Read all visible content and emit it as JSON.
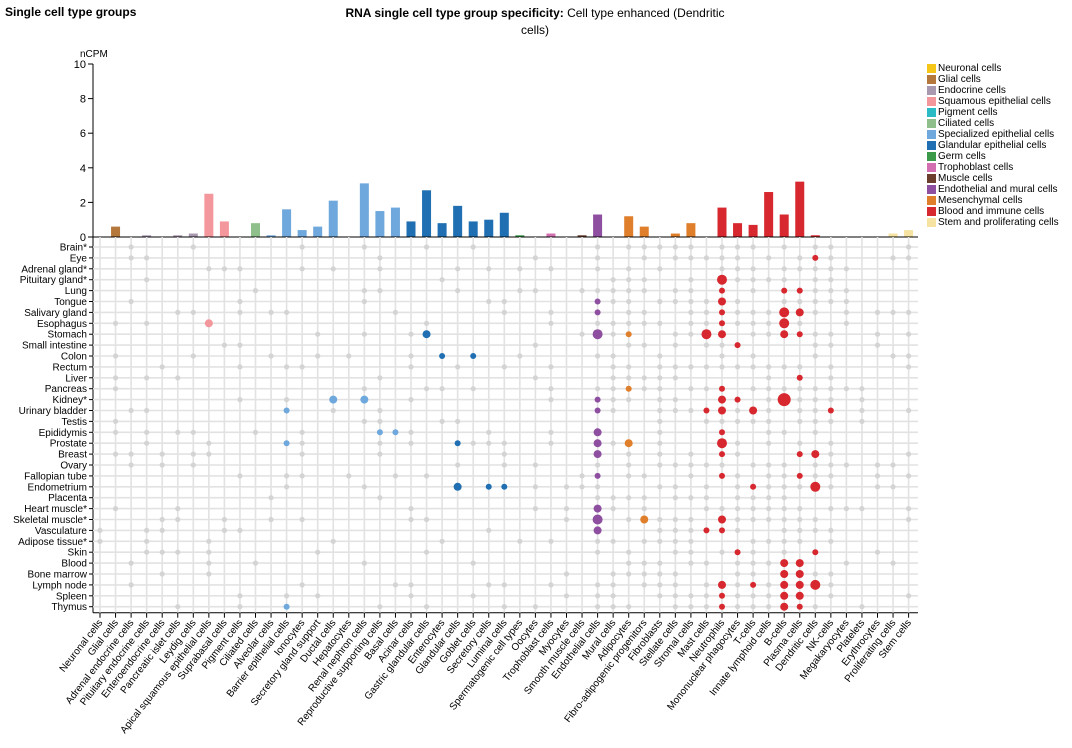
{
  "page": {
    "heading": "Single cell type groups",
    "title_bold": "RNA single cell type group specificity:",
    "title_rest": "Cell type enhanced (Dendritic cells)"
  },
  "legend": [
    {
      "label": "Neuronal cells",
      "color": "#f5c518"
    },
    {
      "label": "Glial cells",
      "color": "#b5783c"
    },
    {
      "label": "Endocrine cells",
      "color": "#a999b0"
    },
    {
      "label": "Squamous epithelial cells",
      "color": "#f4979c"
    },
    {
      "label": "Pigment cells",
      "color": "#2bbbc4"
    },
    {
      "label": "Ciliated cells",
      "color": "#8fbf8a"
    },
    {
      "label": "Specialized epithelial cells",
      "color": "#6fa8dc"
    },
    {
      "label": "Glandular epithelial cells",
      "color": "#1f6fb2"
    },
    {
      "label": "Germ cells",
      "color": "#3a9a4a"
    },
    {
      "label": "Trophoblast cells",
      "color": "#d36fb0"
    },
    {
      "label": "Muscle cells",
      "color": "#6b3e2e"
    },
    {
      "label": "Endothelial and mural cells",
      "color": "#8e4fa0"
    },
    {
      "label": "Mesenchymal cells",
      "color": "#e07f2b"
    },
    {
      "label": "Blood and immune cells",
      "color": "#d7282f"
    },
    {
      "label": "Stem and proliferating cells",
      "color": "#f6e3a1"
    }
  ],
  "chart_data": {
    "type": "bar",
    "ylabel": "nCPM",
    "ylim": [
      0,
      10
    ],
    "yticks": [
      0,
      2,
      4,
      6,
      8,
      10
    ],
    "grid": true,
    "categories": [
      "Neuronal cells",
      "Glial cells",
      "Adrenal endocrine cells",
      "Pituitary endocrine cells",
      "Enteroendocrine cells",
      "Pancreatic islet cells",
      "Leydig cells",
      "Apical squamous epithelial cells",
      "Suprabasal cells",
      "Pigment cells",
      "Ciliated cells",
      "Alveolar cells",
      "Barrier epithelial cells",
      "Ionocytes",
      "Secretory gland support",
      "Ductal cells",
      "Hepatocytes",
      "Renal nephron cells",
      "Reproductive supporting cells",
      "Basal cells",
      "Acinar cells",
      "Gastric glandular cells",
      "Enterocytes",
      "Glandular cells",
      "Goblet cells",
      "Secretory cells",
      "Luminal cells",
      "Spermatogenic cell types",
      "Oocytes",
      "Trophoblast cells",
      "Myocytes",
      "Smooth muscle cells",
      "Endothelial cells",
      "Mural cells",
      "Adipocytes",
      "Fibro-adipogenic progenitors",
      "Fibroblasts",
      "Stellate cells",
      "Stromal cells",
      "Mast cells",
      "Neutrophils",
      "Mononuclear phagocytes",
      "T-cells",
      "Innate lymphoid cells",
      "B-cells",
      "Plasma cells",
      "Dendritic cells",
      "NK-cells",
      "Megakaryocytes",
      "Platelets",
      "Erythrocytes",
      "Proliferating cells",
      "Stem cells"
    ],
    "groups": [
      0,
      1,
      2,
      2,
      2,
      2,
      2,
      3,
      3,
      4,
      5,
      6,
      6,
      6,
      6,
      6,
      6,
      6,
      6,
      6,
      7,
      7,
      7,
      7,
      7,
      7,
      7,
      8,
      8,
      9,
      10,
      10,
      11,
      11,
      12,
      12,
      12,
      12,
      12,
      13,
      13,
      13,
      13,
      13,
      13,
      13,
      13,
      13,
      13,
      13,
      13,
      14,
      14
    ],
    "values": [
      0.02,
      0.6,
      0.02,
      0.1,
      0.02,
      0.1,
      0.2,
      2.5,
      0.9,
      0.02,
      0.8,
      0.1,
      1.6,
      0.4,
      0.6,
      2.1,
      0.02,
      3.1,
      1.5,
      1.7,
      0.9,
      2.7,
      0.8,
      1.8,
      0.9,
      1.0,
      1.4,
      0.1,
      0.02,
      0.2,
      0.02,
      0.1,
      1.3,
      0.02,
      1.2,
      0.6,
      0.02,
      0.2,
      0.8,
      0.02,
      1.7,
      0.8,
      0.7,
      2.6,
      1.3,
      3.2,
      0.1,
      0.02,
      0.02,
      0.02,
      0.02,
      0.2,
      0.4
    ],
    "tissues": [
      "Brain*",
      "Eye",
      "Adrenal gland*",
      "Pituitary gland*",
      "Lung",
      "Tongue",
      "Salivary gland",
      "Esophagus",
      "Stomach",
      "Small intestine",
      "Colon",
      "Rectum",
      "Liver",
      "Pancreas",
      "Kidney*",
      "Urinary bladder",
      "Testis",
      "Epididymis",
      "Prostate",
      "Breast",
      "Ovary",
      "Fallopian tube",
      "Endometrium",
      "Placenta",
      "Heart muscle*",
      "Skeletal muscle*",
      "Vasculature",
      "Adipose tissue*",
      "Skin",
      "Blood",
      "Bone marrow",
      "Lymph node",
      "Spleen",
      "Thymus"
    ],
    "enriched_points": [
      {
        "tissue": "Esophagus",
        "cell": "Apical squamous epithelial cells",
        "size": 2
      },
      {
        "tissue": "Stomach",
        "cell": "Gastric glandular cells",
        "size": 2
      },
      {
        "tissue": "Colon",
        "cell": "Enterocytes",
        "size": 1
      },
      {
        "tissue": "Colon",
        "cell": "Goblet cells",
        "size": 1
      },
      {
        "tissue": "Kidney*",
        "cell": "Ductal cells",
        "size": 2
      },
      {
        "tissue": "Kidney*",
        "cell": "Renal nephron cells",
        "size": 2
      },
      {
        "tissue": "Urinary bladder",
        "cell": "Barrier epithelial cells",
        "size": 1
      },
      {
        "tissue": "Epididymis",
        "cell": "Reproductive supporting cells",
        "size": 1
      },
      {
        "tissue": "Epididymis",
        "cell": "Basal cells",
        "size": 1
      },
      {
        "tissue": "Prostate",
        "cell": "Barrier epithelial cells",
        "size": 1
      },
      {
        "tissue": "Prostate",
        "cell": "Glandular cells",
        "size": 1
      },
      {
        "tissue": "Endometrium",
        "cell": "Glandular cells",
        "size": 2
      },
      {
        "tissue": "Endometrium",
        "cell": "Secretory cells",
        "size": 1
      },
      {
        "tissue": "Endometrium",
        "cell": "Luminal cells",
        "size": 1
      },
      {
        "tissue": "Thymus",
        "cell": "Barrier epithelial cells",
        "size": 1
      },
      {
        "tissue": "Tongue",
        "cell": "Endothelial cells",
        "size": 1
      },
      {
        "tissue": "Salivary gland",
        "cell": "Endothelial cells",
        "size": 1
      },
      {
        "tissue": "Stomach",
        "cell": "Endothelial cells",
        "size": 3
      },
      {
        "tissue": "Kidney*",
        "cell": "Endothelial cells",
        "size": 1
      },
      {
        "tissue": "Urinary bladder",
        "cell": "Endothelial cells",
        "size": 1
      },
      {
        "tissue": "Epididymis",
        "cell": "Endothelial cells",
        "size": 2
      },
      {
        "tissue": "Prostate",
        "cell": "Endothelial cells",
        "size": 2
      },
      {
        "tissue": "Breast",
        "cell": "Endothelial cells",
        "size": 2
      },
      {
        "tissue": "Fallopian tube",
        "cell": "Endothelial cells",
        "size": 1
      },
      {
        "tissue": "Heart muscle*",
        "cell": "Endothelial cells",
        "size": 2
      },
      {
        "tissue": "Skeletal muscle*",
        "cell": "Endothelial cells",
        "size": 3
      },
      {
        "tissue": "Vasculature",
        "cell": "Endothelial cells",
        "size": 2
      },
      {
        "tissue": "Stomach",
        "cell": "Adipocytes",
        "size": 1
      },
      {
        "tissue": "Pancreas",
        "cell": "Adipocytes",
        "size": 1
      },
      {
        "tissue": "Prostate",
        "cell": "Adipocytes",
        "size": 2
      },
      {
        "tissue": "Skeletal muscle*",
        "cell": "Fibro-adipogenic progenitors",
        "size": 2
      },
      {
        "tissue": "Eye",
        "cell": "Dendritic cells",
        "size": 1
      },
      {
        "tissue": "Pituitary gland*",
        "cell": "Neutrophils",
        "size": 3
      },
      {
        "tissue": "Lung",
        "cell": "Neutrophils",
        "size": 1
      },
      {
        "tissue": "Lung",
        "cell": "B-cells",
        "size": 1
      },
      {
        "tissue": "Lung",
        "cell": "Plasma cells",
        "size": 1
      },
      {
        "tissue": "Tongue",
        "cell": "Neutrophils",
        "size": 2
      },
      {
        "tissue": "Salivary gland",
        "cell": "Neutrophils",
        "size": 1
      },
      {
        "tissue": "Salivary gland",
        "cell": "B-cells",
        "size": 3
      },
      {
        "tissue": "Salivary gland",
        "cell": "Plasma cells",
        "size": 2
      },
      {
        "tissue": "Esophagus",
        "cell": "Neutrophils",
        "size": 1
      },
      {
        "tissue": "Esophagus",
        "cell": "B-cells",
        "size": 3
      },
      {
        "tissue": "Stomach",
        "cell": "Mast cells",
        "size": 3
      },
      {
        "tissue": "Stomach",
        "cell": "Neutrophils",
        "size": 2
      },
      {
        "tissue": "Stomach",
        "cell": "B-cells",
        "size": 2
      },
      {
        "tissue": "Stomach",
        "cell": "Plasma cells",
        "size": 1
      },
      {
        "tissue": "Small intestine",
        "cell": "Mononuclear phagocytes",
        "size": 1
      },
      {
        "tissue": "Liver",
        "cell": "Plasma cells",
        "size": 1
      },
      {
        "tissue": "Pancreas",
        "cell": "Neutrophils",
        "size": 1
      },
      {
        "tissue": "Kidney*",
        "cell": "Neutrophils",
        "size": 2
      },
      {
        "tissue": "Kidney*",
        "cell": "Mononuclear phagocytes",
        "size": 1
      },
      {
        "tissue": "Kidney*",
        "cell": "B-cells",
        "size": 4
      },
      {
        "tissue": "Urinary bladder",
        "cell": "Mast cells",
        "size": 1
      },
      {
        "tissue": "Urinary bladder",
        "cell": "Neutrophils",
        "size": 2
      },
      {
        "tissue": "Urinary bladder",
        "cell": "T-cells",
        "size": 2
      },
      {
        "tissue": "Urinary bladder",
        "cell": "NK-cells",
        "size": 1
      },
      {
        "tissue": "Epididymis",
        "cell": "Neutrophils",
        "size": 1
      },
      {
        "tissue": "Prostate",
        "cell": "Neutrophils",
        "size": 3
      },
      {
        "tissue": "Breast",
        "cell": "Neutrophils",
        "size": 1
      },
      {
        "tissue": "Breast",
        "cell": "Plasma cells",
        "size": 1
      },
      {
        "tissue": "Breast",
        "cell": "Dendritic cells",
        "size": 2
      },
      {
        "tissue": "Fallopian tube",
        "cell": "Neutrophils",
        "size": 1
      },
      {
        "tissue": "Fallopian tube",
        "cell": "Plasma cells",
        "size": 1
      },
      {
        "tissue": "Endometrium",
        "cell": "T-cells",
        "size": 1
      },
      {
        "tissue": "Endometrium",
        "cell": "Dendritic cells",
        "size": 3
      },
      {
        "tissue": "Skeletal muscle*",
        "cell": "Neutrophils",
        "size": 2
      },
      {
        "tissue": "Vasculature",
        "cell": "Mast cells",
        "size": 1
      },
      {
        "tissue": "Vasculature",
        "cell": "Neutrophils",
        "size": 1
      },
      {
        "tissue": "Skin",
        "cell": "Mononuclear phagocytes",
        "size": 1
      },
      {
        "tissue": "Skin",
        "cell": "Dendritic cells",
        "size": 1
      },
      {
        "tissue": "Blood",
        "cell": "B-cells",
        "size": 2
      },
      {
        "tissue": "Blood",
        "cell": "Plasma cells",
        "size": 2
      },
      {
        "tissue": "Bone marrow",
        "cell": "B-cells",
        "size": 2
      },
      {
        "tissue": "Bone marrow",
        "cell": "Plasma cells",
        "size": 2
      },
      {
        "tissue": "Lymph node",
        "cell": "Neutrophils",
        "size": 2
      },
      {
        "tissue": "Lymph node",
        "cell": "T-cells",
        "size": 1
      },
      {
        "tissue": "Lymph node",
        "cell": "B-cells",
        "size": 2
      },
      {
        "tissue": "Lymph node",
        "cell": "Plasma cells",
        "size": 2
      },
      {
        "tissue": "Lymph node",
        "cell": "Dendritic cells",
        "size": 3
      },
      {
        "tissue": "Spleen",
        "cell": "Neutrophils",
        "size": 1
      },
      {
        "tissue": "Spleen",
        "cell": "B-cells",
        "size": 2
      },
      {
        "tissue": "Spleen",
        "cell": "Plasma cells",
        "size": 2
      },
      {
        "tissue": "Thymus",
        "cell": "Neutrophils",
        "size": 1
      },
      {
        "tissue": "Thymus",
        "cell": "B-cells",
        "size": 2
      },
      {
        "tissue": "Thymus",
        "cell": "Plasma cells",
        "size": 1
      }
    ]
  }
}
